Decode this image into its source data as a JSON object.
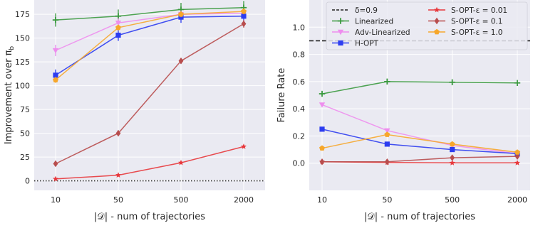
{
  "chart_data": [
    {
      "type": "line",
      "xlabel": "|𝒟| - num of trajectories",
      "ylabel": "Improvement over π",
      "ylabel_sub": "b",
      "categories": [
        "10",
        "50",
        "500",
        "2000"
      ],
      "ylim": [
        -10,
        190
      ],
      "yticks": [
        0,
        25,
        50,
        75,
        100,
        125,
        150,
        175
      ],
      "grid": true,
      "reference_line": {
        "y": 0,
        "style": "dotted",
        "color": "#333333"
      },
      "series": [
        {
          "name": "Linearized",
          "color": "#3b9a3f",
          "marker": "plus",
          "values": [
            169,
            173,
            180,
            182
          ],
          "err": [
            7,
            7,
            7,
            7
          ]
        },
        {
          "name": "Adv-Linearized",
          "color": "#ee8eee",
          "marker": "tri_down",
          "values": [
            137,
            166,
            175,
            176
          ],
          "err": [
            6,
            5,
            4,
            4
          ]
        },
        {
          "name": "H-OPT",
          "color": "#2d3df0",
          "marker": "square",
          "values": [
            111,
            153,
            172,
            173
          ],
          "err": [
            6,
            6,
            6,
            5
          ]
        },
        {
          "name": "S-OPT-ε = 0.01",
          "color": "#e8383c",
          "marker": "star",
          "values": [
            2,
            6,
            19,
            36
          ],
          "err": [
            0,
            0,
            0,
            0
          ]
        },
        {
          "name": "S-OPT-ε = 0.1",
          "color": "#b84d4d",
          "marker": "diamond",
          "values": [
            18,
            50,
            126,
            165
          ],
          "err": [
            2,
            2,
            3,
            4
          ]
        },
        {
          "name": "S-OPT-ε = 1.0",
          "color": "#f6a72c",
          "marker": "pentagon",
          "values": [
            106,
            161,
            175,
            178
          ],
          "err": [
            3,
            3,
            3,
            3
          ]
        }
      ]
    },
    {
      "type": "line",
      "xlabel": "|𝒟| - num of trajectories",
      "ylabel": "Failure Rate",
      "categories": [
        "10",
        "50",
        "500",
        "2000"
      ],
      "ylim": [
        -0.2,
        1.2
      ],
      "yticks": [
        0.0,
        0.2,
        0.4,
        0.6,
        0.8,
        1.0
      ],
      "grid": true,
      "legend": "top-right",
      "reference_line": {
        "name": "δ=0.9",
        "y": 0.9,
        "style": "dashed",
        "color": "#222222"
      },
      "series": [
        {
          "name": "Linearized",
          "color": "#3b9a3f",
          "marker": "plus",
          "values": [
            0.51,
            0.6,
            0.595,
            0.59
          ]
        },
        {
          "name": "Adv-Linearized",
          "color": "#ee8eee",
          "marker": "tri_down",
          "values": [
            0.43,
            0.24,
            0.13,
            0.07
          ]
        },
        {
          "name": "H-OPT",
          "color": "#2d3df0",
          "marker": "square",
          "values": [
            0.25,
            0.14,
            0.1,
            0.07
          ]
        },
        {
          "name": "S-OPT-ε = 0.01",
          "color": "#e8383c",
          "marker": "star",
          "values": [
            0.01,
            0.005,
            0.002,
            0.002
          ]
        },
        {
          "name": "S-OPT-ε = 0.1",
          "color": "#b84d4d",
          "marker": "diamond",
          "values": [
            0.01,
            0.01,
            0.04,
            0.05
          ]
        },
        {
          "name": "S-OPT-ε = 1.0",
          "color": "#f6a72c",
          "marker": "pentagon",
          "values": [
            0.11,
            0.21,
            0.14,
            0.08
          ]
        }
      ],
      "legend_entries": [
        {
          "label": "δ=0.9",
          "ref": true
        },
        {
          "label": "Linearized",
          "series": 0
        },
        {
          "label": "Adv-Linearized",
          "series": 1
        },
        {
          "label": "H-OPT",
          "series": 2
        },
        {
          "label": "S-OPT-ε = 0.01",
          "series": 3
        },
        {
          "label": "S-OPT-ε = 0.1",
          "series": 4
        },
        {
          "label": "S-OPT-ε = 1.0",
          "series": 5
        }
      ]
    }
  ]
}
